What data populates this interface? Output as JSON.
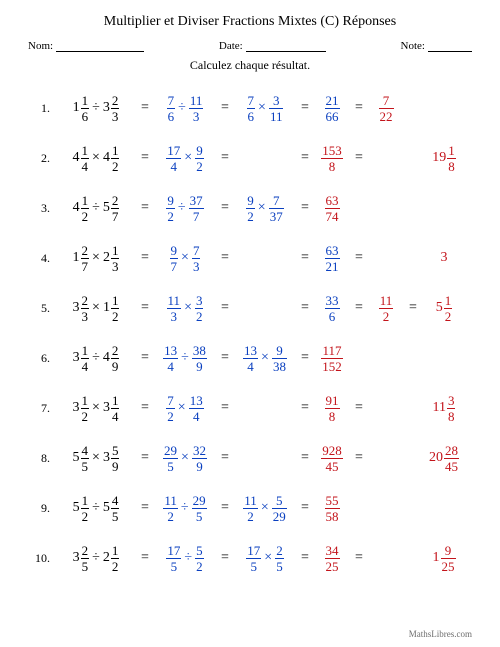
{
  "colors": {
    "blue": "#0a3fbf",
    "red": "#c3141b",
    "text": "#000000",
    "footer": "#6e6e6e"
  },
  "title": "Multiplier et Diviser Fractions Mixtes (C) Réponses",
  "labels": {
    "name": "Nom:",
    "date": "Date:",
    "note": "Note:"
  },
  "subtitle": "Calculez chaque résultat.",
  "footer": "MathsLibres.com",
  "eq": "=",
  "ops": {
    "div": "÷",
    "mul": "×"
  },
  "problems": [
    {
      "idx": "1.",
      "a": {
        "w": "1",
        "n": "1",
        "d": "6"
      },
      "op": "div",
      "b": {
        "w": "3",
        "n": "2",
        "d": "3"
      },
      "s1": {
        "l": {
          "n": "7",
          "d": "6"
        },
        "op": "div",
        "r": {
          "n": "11",
          "d": "3"
        },
        "color": "blue"
      },
      "s2": {
        "l": {
          "n": "7",
          "d": "6"
        },
        "op": "mul",
        "r": {
          "n": "3",
          "d": "11"
        },
        "color": "blue"
      },
      "s3": {
        "n": "21",
        "d": "66",
        "color": "blue"
      },
      "s4": {
        "n": "7",
        "d": "22",
        "color": "red"
      },
      "s5": null
    },
    {
      "idx": "2.",
      "a": {
        "w": "4",
        "n": "1",
        "d": "4"
      },
      "op": "mul",
      "b": {
        "w": "4",
        "n": "1",
        "d": "2"
      },
      "s1": {
        "l": {
          "n": "17",
          "d": "4"
        },
        "op": "mul",
        "r": {
          "n": "9",
          "d": "2"
        },
        "color": "blue"
      },
      "s2": null,
      "s3": {
        "n": "153",
        "d": "8",
        "color": "red"
      },
      "s4": null,
      "s5": {
        "w": "19",
        "n": "1",
        "d": "8",
        "color": "red"
      }
    },
    {
      "idx": "3.",
      "a": {
        "w": "4",
        "n": "1",
        "d": "2"
      },
      "op": "div",
      "b": {
        "w": "5",
        "n": "2",
        "d": "7"
      },
      "s1": {
        "l": {
          "n": "9",
          "d": "2"
        },
        "op": "div",
        "r": {
          "n": "37",
          "d": "7"
        },
        "color": "blue"
      },
      "s2": {
        "l": {
          "n": "9",
          "d": "2"
        },
        "op": "mul",
        "r": {
          "n": "7",
          "d": "37"
        },
        "color": "blue"
      },
      "s3": {
        "n": "63",
        "d": "74",
        "color": "red"
      },
      "s4": null,
      "s5": null
    },
    {
      "idx": "4.",
      "a": {
        "w": "1",
        "n": "2",
        "d": "7"
      },
      "op": "mul",
      "b": {
        "w": "2",
        "n": "1",
        "d": "3"
      },
      "s1": {
        "l": {
          "n": "9",
          "d": "7"
        },
        "op": "mul",
        "r": {
          "n": "7",
          "d": "3"
        },
        "color": "blue"
      },
      "s2": null,
      "s3": {
        "n": "63",
        "d": "21",
        "color": "blue"
      },
      "s4": null,
      "s5": {
        "plain": "3",
        "color": "red"
      }
    },
    {
      "idx": "5.",
      "a": {
        "w": "3",
        "n": "2",
        "d": "3"
      },
      "op": "mul",
      "b": {
        "w": "1",
        "n": "1",
        "d": "2"
      },
      "s1": {
        "l": {
          "n": "11",
          "d": "3"
        },
        "op": "mul",
        "r": {
          "n": "3",
          "d": "2"
        },
        "color": "blue"
      },
      "s2": null,
      "s3": {
        "n": "33",
        "d": "6",
        "color": "blue"
      },
      "s4": {
        "n": "11",
        "d": "2",
        "color": "red"
      },
      "s5": {
        "w": "5",
        "n": "1",
        "d": "2",
        "color": "red"
      }
    },
    {
      "idx": "6.",
      "a": {
        "w": "3",
        "n": "1",
        "d": "4"
      },
      "op": "div",
      "b": {
        "w": "4",
        "n": "2",
        "d": "9"
      },
      "s1": {
        "l": {
          "n": "13",
          "d": "4"
        },
        "op": "div",
        "r": {
          "n": "38",
          "d": "9"
        },
        "color": "blue"
      },
      "s2": {
        "l": {
          "n": "13",
          "d": "4"
        },
        "op": "mul",
        "r": {
          "n": "9",
          "d": "38"
        },
        "color": "blue"
      },
      "s3": {
        "n": "117",
        "d": "152",
        "color": "red"
      },
      "s4": null,
      "s5": null
    },
    {
      "idx": "7.",
      "a": {
        "w": "3",
        "n": "1",
        "d": "2"
      },
      "op": "mul",
      "b": {
        "w": "3",
        "n": "1",
        "d": "4"
      },
      "s1": {
        "l": {
          "n": "7",
          "d": "2"
        },
        "op": "mul",
        "r": {
          "n": "13",
          "d": "4"
        },
        "color": "blue"
      },
      "s2": null,
      "s3": {
        "n": "91",
        "d": "8",
        "color": "red"
      },
      "s4": null,
      "s5": {
        "w": "11",
        "n": "3",
        "d": "8",
        "color": "red"
      }
    },
    {
      "idx": "8.",
      "a": {
        "w": "5",
        "n": "4",
        "d": "5"
      },
      "op": "mul",
      "b": {
        "w": "3",
        "n": "5",
        "d": "9"
      },
      "s1": {
        "l": {
          "n": "29",
          "d": "5"
        },
        "op": "mul",
        "r": {
          "n": "32",
          "d": "9"
        },
        "color": "blue"
      },
      "s2": null,
      "s3": {
        "n": "928",
        "d": "45",
        "color": "red"
      },
      "s4": null,
      "s5": {
        "w": "20",
        "n": "28",
        "d": "45",
        "color": "red"
      }
    },
    {
      "idx": "9.",
      "a": {
        "w": "5",
        "n": "1",
        "d": "2"
      },
      "op": "div",
      "b": {
        "w": "5",
        "n": "4",
        "d": "5"
      },
      "s1": {
        "l": {
          "n": "11",
          "d": "2"
        },
        "op": "div",
        "r": {
          "n": "29",
          "d": "5"
        },
        "color": "blue"
      },
      "s2": {
        "l": {
          "n": "11",
          "d": "2"
        },
        "op": "mul",
        "r": {
          "n": "5",
          "d": "29"
        },
        "color": "blue"
      },
      "s3": {
        "n": "55",
        "d": "58",
        "color": "red"
      },
      "s4": null,
      "s5": null
    },
    {
      "idx": "10.",
      "a": {
        "w": "3",
        "n": "2",
        "d": "5"
      },
      "op": "div",
      "b": {
        "w": "2",
        "n": "1",
        "d": "2"
      },
      "s1": {
        "l": {
          "n": "17",
          "d": "5"
        },
        "op": "div",
        "r": {
          "n": "5",
          "d": "2"
        },
        "color": "blue"
      },
      "s2": {
        "l": {
          "n": "17",
          "d": "5"
        },
        "op": "mul",
        "r": {
          "n": "2",
          "d": "5"
        },
        "color": "blue"
      },
      "s3": {
        "n": "34",
        "d": "25",
        "color": "red"
      },
      "s4": null,
      "s5": {
        "w": "1",
        "n": "9",
        "d": "25",
        "color": "red"
      }
    }
  ]
}
